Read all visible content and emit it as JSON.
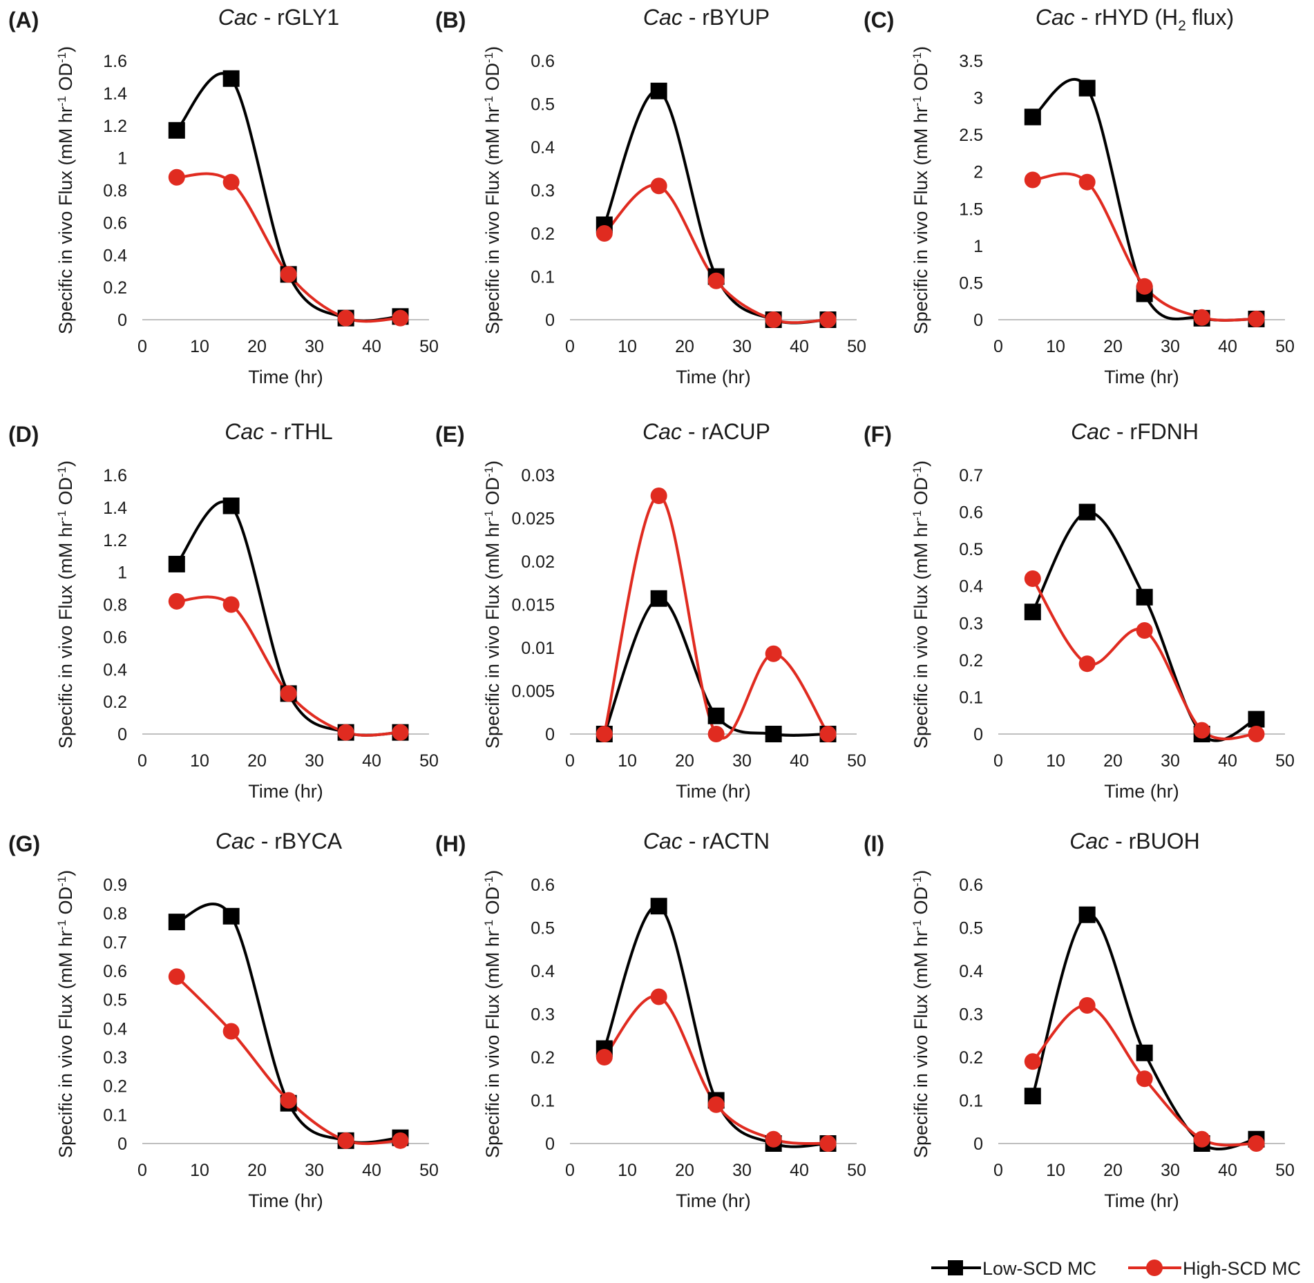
{
  "legend": [
    {
      "name": "Low-SCD MC",
      "color": "#000000",
      "marker": "square"
    },
    {
      "name": "High-SCD MC",
      "color": "#e02b20",
      "marker": "circle"
    }
  ],
  "chart_data": [
    {
      "panel": "(A)",
      "type": "line",
      "title_italic": "Cac",
      "title_rest": " - rGLY1",
      "xlabel": "Time (hr)",
      "ylabel": "Specific in vivo Flux (mM hr-1 OD-1)",
      "xlim": [
        0,
        50
      ],
      "ylim": [
        0,
        1.6
      ],
      "xticks": [
        "0",
        "10",
        "20",
        "30",
        "40",
        "50"
      ],
      "yticks": [
        "0",
        "0.2",
        "0.4",
        "0.6",
        "0.8",
        "1",
        "1.2",
        "1.4",
        "1.6"
      ],
      "x": [
        6,
        15.5,
        25.5,
        35.5,
        45
      ],
      "series": [
        {
          "name": "Low-SCD MC",
          "values": [
            1.17,
            1.49,
            0.28,
            0.01,
            0.02
          ]
        },
        {
          "name": "High-SCD MC",
          "values": [
            0.88,
            0.85,
            0.28,
            0.01,
            0.01
          ]
        }
      ]
    },
    {
      "panel": "(B)",
      "type": "line",
      "title_italic": "Cac",
      "title_rest": " - rBYUP",
      "xlabel": "Time (hr)",
      "ylabel": "Specific in vivo Flux (mM hr-1 OD-1)",
      "xlim": [
        0,
        50
      ],
      "ylim": [
        0,
        0.6
      ],
      "xticks": [
        "0",
        "10",
        "20",
        "30",
        "40",
        "50"
      ],
      "yticks": [
        "0",
        "0.1",
        "0.2",
        "0.3",
        "0.4",
        "0.5",
        "0.6"
      ],
      "x": [
        6,
        15.5,
        25.5,
        35.5,
        45
      ],
      "series": [
        {
          "name": "Low-SCD MC",
          "values": [
            0.22,
            0.53,
            0.1,
            0.0,
            0.0
          ]
        },
        {
          "name": "High-SCD MC",
          "values": [
            0.2,
            0.31,
            0.09,
            0.0,
            0.0
          ]
        }
      ]
    },
    {
      "panel": "(C)",
      "type": "line",
      "title_italic": "Cac",
      "title_rest": " - rHYD (H",
      "title_sub": "2",
      "title_after": " flux)",
      "xlabel": "Time (hr)",
      "ylabel": "Specific in vivo Flux (mM hr-1 OD-1)",
      "xlim": [
        0,
        50
      ],
      "ylim": [
        0,
        3.5
      ],
      "xticks": [
        "0",
        "10",
        "20",
        "30",
        "40",
        "50"
      ],
      "yticks": [
        "0",
        "0.5",
        "1",
        "1.5",
        "2",
        "2.5",
        "3",
        "3.5"
      ],
      "x": [
        6,
        15.5,
        25.5,
        35.5,
        45
      ],
      "series": [
        {
          "name": "Low-SCD MC",
          "values": [
            2.74,
            3.13,
            0.35,
            0.02,
            0.01
          ]
        },
        {
          "name": "High-SCD MC",
          "values": [
            1.89,
            1.86,
            0.45,
            0.03,
            0.01
          ]
        }
      ]
    },
    {
      "panel": "(D)",
      "type": "line",
      "title_italic": "Cac",
      "title_rest": " - rTHL",
      "xlabel": "Time (hr)",
      "ylabel": "Specific in vivo Flux (mM hr-1 OD-1)",
      "xlim": [
        0,
        50
      ],
      "ylim": [
        0,
        1.6
      ],
      "xticks": [
        "0",
        "10",
        "20",
        "30",
        "40",
        "50"
      ],
      "yticks": [
        "0",
        "0.2",
        "0.4",
        "0.6",
        "0.8",
        "1",
        "1.2",
        "1.4",
        "1.6"
      ],
      "x": [
        6,
        15.5,
        25.5,
        35.5,
        45
      ],
      "series": [
        {
          "name": "Low-SCD MC",
          "values": [
            1.05,
            1.41,
            0.25,
            0.01,
            0.01
          ]
        },
        {
          "name": "High-SCD MC",
          "values": [
            0.82,
            0.8,
            0.25,
            0.01,
            0.01
          ]
        }
      ]
    },
    {
      "panel": "(E)",
      "type": "line",
      "title_italic": "Cac",
      "title_rest": " - rACUP",
      "xlabel": "Time (hr)",
      "ylabel": "Specific in vivo Flux (mM hr-1 OD-1)",
      "xlim": [
        0,
        50
      ],
      "ylim": [
        0,
        0.03
      ],
      "xticks": [
        "0",
        "10",
        "20",
        "30",
        "40",
        "50"
      ],
      "yticks": [
        "0",
        "0.005",
        "0.01",
        "0.015",
        "0.02",
        "0.025",
        "0.03"
      ],
      "x": [
        6,
        15.5,
        25.5,
        35.5,
        45
      ],
      "series": [
        {
          "name": "Low-SCD MC",
          "values": [
            0.0,
            0.0157,
            0.0021,
            0.0,
            0.0
          ]
        },
        {
          "name": "High-SCD MC",
          "values": [
            0.0,
            0.0276,
            0.0,
            0.0093,
            0.0
          ]
        }
      ]
    },
    {
      "panel": "(F)",
      "type": "line",
      "title_italic": "Cac",
      "title_rest": " - rFDNH",
      "xlabel": "Time (hr)",
      "ylabel": "Specific in vivo Flux (mM hr-1 OD-1)",
      "xlim": [
        0,
        50
      ],
      "ylim": [
        0,
        0.7
      ],
      "xticks": [
        "0",
        "10",
        "20",
        "30",
        "40",
        "50"
      ],
      "yticks": [
        "0",
        "0.1",
        "0.2",
        "0.3",
        "0.4",
        "0.5",
        "0.6",
        "0.7"
      ],
      "x": [
        6,
        15.5,
        25.5,
        35.5,
        45
      ],
      "series": [
        {
          "name": "Low-SCD MC",
          "values": [
            0.33,
            0.6,
            0.37,
            0.0,
            0.04
          ]
        },
        {
          "name": "High-SCD MC",
          "values": [
            0.42,
            0.19,
            0.28,
            0.01,
            0.0
          ]
        }
      ]
    },
    {
      "panel": "(G)",
      "type": "line",
      "title_italic": "Cac",
      "title_rest": " - rBYCA",
      "xlabel": "Time (hr)",
      "ylabel": "Specific in vivo Flux (mM hr-1 OD-1)",
      "xlim": [
        0,
        50
      ],
      "ylim": [
        0,
        0.9
      ],
      "xticks": [
        "0",
        "10",
        "20",
        "30",
        "40",
        "50"
      ],
      "yticks": [
        "0",
        "0.1",
        "0.2",
        "0.3",
        "0.4",
        "0.5",
        "0.6",
        "0.7",
        "0.8",
        "0.9"
      ],
      "x": [
        6,
        15.5,
        25.5,
        35.5,
        45
      ],
      "series": [
        {
          "name": "Low-SCD MC",
          "values": [
            0.77,
            0.79,
            0.14,
            0.01,
            0.02
          ]
        },
        {
          "name": "High-SCD MC",
          "values": [
            0.58,
            0.39,
            0.15,
            0.01,
            0.01
          ]
        }
      ]
    },
    {
      "panel": "(H)",
      "type": "line",
      "title_italic": "Cac",
      "title_rest": " - rACTN",
      "xlabel": "Time (hr)",
      "ylabel": "Specific in vivo Flux (mM hr-1 OD-1)",
      "xlim": [
        0,
        50
      ],
      "ylim": [
        0,
        0.6
      ],
      "xticks": [
        "0",
        "10",
        "20",
        "30",
        "40",
        "50"
      ],
      "yticks": [
        "0",
        "0.1",
        "0.2",
        "0.3",
        "0.4",
        "0.5",
        "0.6"
      ],
      "x": [
        6,
        15.5,
        25.5,
        35.5,
        45
      ],
      "series": [
        {
          "name": "Low-SCD MC",
          "values": [
            0.22,
            0.55,
            0.1,
            0.0,
            0.0
          ]
        },
        {
          "name": "High-SCD MC",
          "values": [
            0.2,
            0.34,
            0.09,
            0.01,
            0.0
          ]
        }
      ]
    },
    {
      "panel": "(I)",
      "type": "line",
      "title_italic": "Cac",
      "title_rest": " - rBUOH",
      "xlabel": "Time (hr)",
      "ylabel": "Specific in vivo Flux (mM hr-1 OD-1)",
      "xlim": [
        0,
        50
      ],
      "ylim": [
        0,
        0.6
      ],
      "xticks": [
        "0",
        "10",
        "20",
        "30",
        "40",
        "50"
      ],
      "yticks": [
        "0",
        "0.1",
        "0.2",
        "0.3",
        "0.4",
        "0.5",
        "0.6"
      ],
      "x": [
        6,
        15.5,
        25.5,
        35.5,
        45
      ],
      "series": [
        {
          "name": "Low-SCD MC",
          "values": [
            0.11,
            0.53,
            0.21,
            0.0,
            0.01
          ]
        },
        {
          "name": "High-SCD MC",
          "values": [
            0.19,
            0.32,
            0.15,
            0.01,
            0.0
          ]
        }
      ]
    }
  ]
}
